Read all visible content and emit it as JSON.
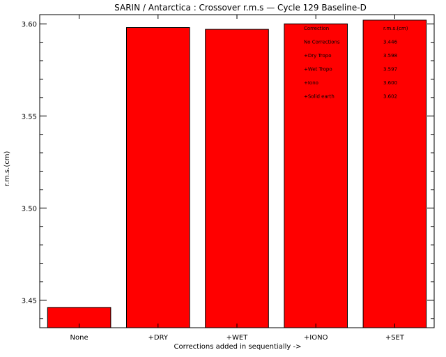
{
  "chart_data": {
    "type": "bar",
    "title": "SARIN / Antarctica : Crossover r.m.s — Cycle 129 Baseline-D",
    "xlabel": "Corrections added in sequentially ->",
    "ylabel": "r.m.s.(cm)",
    "categories": [
      "None",
      "+DRY",
      "+WET",
      "+IONO",
      "+SET"
    ],
    "values": [
      3.446,
      3.598,
      3.597,
      3.6,
      3.602
    ],
    "ylim": [
      3.435,
      3.605
    ],
    "yticks": [
      3.45,
      3.5,
      3.55,
      3.6
    ],
    "ytick_labels": [
      "3.45",
      "3.50",
      "3.55",
      "3.60"
    ],
    "bar_color": "#ff0000",
    "grid": false,
    "table": {
      "header": [
        "Correction",
        "r.m.s.(cm)"
      ],
      "rows": [
        [
          "No Corrections",
          "3.446"
        ],
        [
          "+Dry Tropo",
          "3.598"
        ],
        [
          "+Wet Tropo",
          "3.597"
        ],
        [
          "+Iono",
          "3.600"
        ],
        [
          "+Solid earth",
          "3.602"
        ]
      ]
    }
  }
}
